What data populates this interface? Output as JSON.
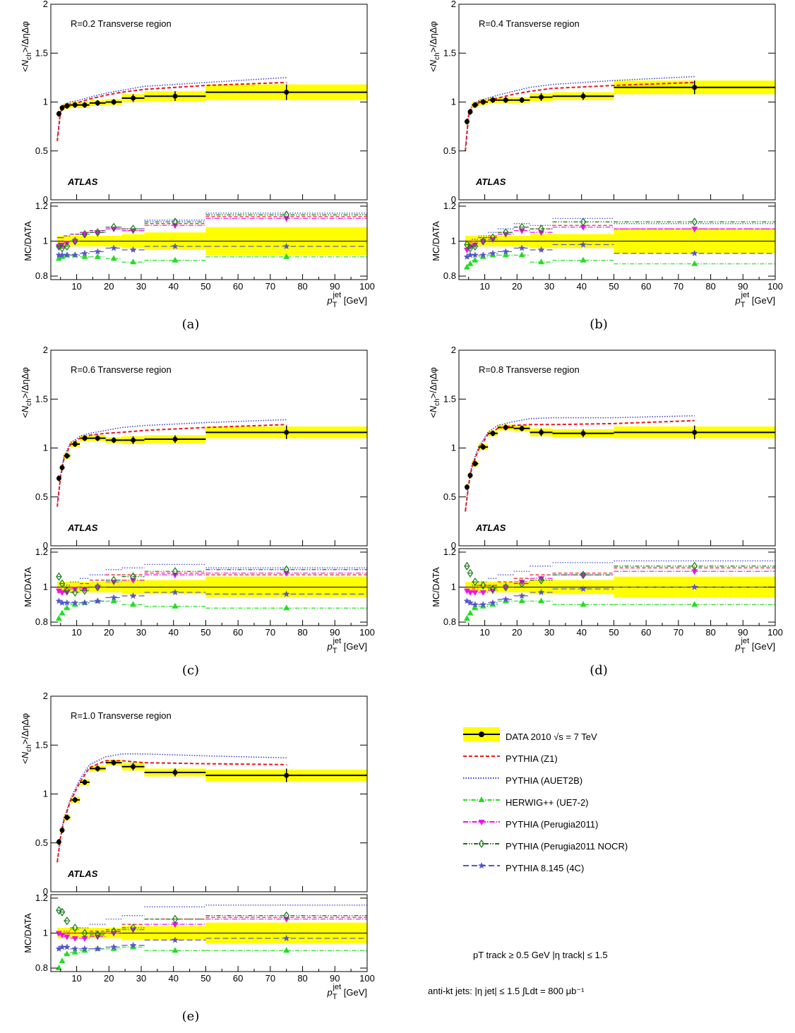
{
  "figure": {
    "panels": [
      {
        "caption": "(a)",
        "label": "R=0.2   Transverse region",
        "atlas": "ATLAS"
      },
      {
        "caption": "(b)",
        "label": "R=0.4   Transverse region",
        "atlas": "ATLAS"
      },
      {
        "caption": "(c)",
        "label": "R=0.6   Transverse region",
        "atlas": "ATLAS"
      },
      {
        "caption": "(d)",
        "label": "R=0.8   Transverse region",
        "atlas": "ATLAS"
      },
      {
        "caption": "(e)",
        "label": "R=1.0   Transverse region",
        "atlas": "ATLAS"
      }
    ],
    "ylabel_top": "<Nch>/ΔηΔφ",
    "ylabel_ratio": "MC/DATA",
    "xlabel": "pT jet [GeV]",
    "legend": [
      {
        "label": "DATA  2010  √s = 7 TeV",
        "color": "#000000",
        "style": "data"
      },
      {
        "label": "PYTHIA (Z1)",
        "color": "#e8191d",
        "style": "dashed"
      },
      {
        "label": "PYTHIA (AUET2B)",
        "color": "#3b3bd6",
        "style": "dotted"
      },
      {
        "label": "HERWIG++ (UE7-2)",
        "color": "#22dd22",
        "style": "dashdot",
        "marker": "triangle-up"
      },
      {
        "label": "PYTHIA (Perugia2011)",
        "color": "#ee11ee",
        "style": "dashdot",
        "marker": "triangle-down"
      },
      {
        "label": "PYTHIA (Perugia2011 NOCR)",
        "color": "#117711",
        "style": "dashdotdot",
        "marker": "open-diamond"
      },
      {
        "label": "PYTHIA 8.145 (4C)",
        "color": "#5555cc",
        "style": "longdash",
        "marker": "star"
      }
    ],
    "cuts_line1": "pT track ≥ 0.5 GeV   |η track| ≤ 1.5",
    "cuts_line2": "anti-kt jets: |η jet| ≤ 1.5   ∫Ldt = 800 μb⁻¹"
  },
  "chart_data": [
    {
      "type": "line",
      "title": "R=0.2 Transverse region",
      "xlim": [
        2,
        100
      ],
      "ylim": [
        0,
        2
      ],
      "ratio_ylim": [
        0.78,
        1.22
      ],
      "x_bins": [
        [
          4,
          5
        ],
        [
          5,
          6
        ],
        [
          6,
          8
        ],
        [
          8,
          11
        ],
        [
          11,
          14
        ],
        [
          14,
          19
        ],
        [
          19,
          24
        ],
        [
          24,
          31
        ],
        [
          31,
          50
        ],
        [
          50,
          100
        ]
      ],
      "x_markers": [
        4.5,
        5.5,
        7,
        9.5,
        12.5,
        16.5,
        21.5,
        27.5,
        40.5,
        75
      ],
      "data": [
        0.88,
        0.94,
        0.96,
        0.97,
        0.97,
        0.99,
        1.0,
        1.04,
        1.06,
        1.1
      ],
      "data_err": [
        0.03,
        0.03,
        0.03,
        0.03,
        0.03,
        0.03,
        0.03,
        0.04,
        0.05,
        0.08
      ],
      "mc_curves": {
        "z1_x": [
          4,
          5,
          6,
          8,
          11,
          14,
          19,
          24,
          31,
          50,
          75
        ],
        "z1": [
          0.6,
          0.9,
          0.95,
          0.98,
          1.0,
          1.03,
          1.07,
          1.1,
          1.13,
          1.17,
          1.2
        ],
        "auet2b": [
          0.62,
          0.92,
          0.97,
          1.0,
          1.02,
          1.05,
          1.09,
          1.12,
          1.16,
          1.2,
          1.25
        ]
      },
      "ratios": {
        "z1": [
          1.02,
          1.02,
          1.03,
          1.04,
          1.05,
          1.06,
          1.07,
          1.06,
          1.1,
          1.14
        ],
        "auet2b": [
          1.02,
          1.02,
          1.03,
          1.04,
          1.05,
          1.06,
          1.08,
          1.07,
          1.12,
          1.16
        ],
        "herwig": [
          0.9,
          0.91,
          0.92,
          0.92,
          0.91,
          0.91,
          0.9,
          0.88,
          0.89,
          0.91
        ],
        "perugia2011": [
          0.97,
          0.98,
          0.99,
          1.0,
          1.04,
          1.05,
          1.07,
          1.06,
          1.09,
          1.13
        ],
        "perugia2011_nocr": [
          0.97,
          0.96,
          0.97,
          1.0,
          1.04,
          1.05,
          1.08,
          1.07,
          1.11,
          1.15
        ],
        "pythia8_4c": [
          0.92,
          0.92,
          0.92,
          0.92,
          0.93,
          0.94,
          0.96,
          0.95,
          0.97,
          0.97
        ]
      },
      "band_err": [
        0.03,
        0.03,
        0.03,
        0.03,
        0.03,
        0.03,
        0.03,
        0.04,
        0.05,
        0.08
      ]
    },
    {
      "type": "line",
      "title": "R=0.4 Transverse region",
      "xlim": [
        2,
        100
      ],
      "ylim": [
        0,
        2
      ],
      "ratio_ylim": [
        0.78,
        1.22
      ],
      "x_bins": [
        [
          4,
          5
        ],
        [
          5,
          6
        ],
        [
          6,
          8
        ],
        [
          8,
          11
        ],
        [
          11,
          14
        ],
        [
          14,
          19
        ],
        [
          19,
          24
        ],
        [
          24,
          31
        ],
        [
          31,
          50
        ],
        [
          50,
          100
        ]
      ],
      "x_markers": [
        4.5,
        5.5,
        7,
        9.5,
        12.5,
        16.5,
        21.5,
        27.5,
        40.5,
        75
      ],
      "data": [
        0.8,
        0.9,
        0.97,
        1.0,
        1.02,
        1.02,
        1.02,
        1.05,
        1.06,
        1.15
      ],
      "data_err": [
        0.03,
        0.03,
        0.03,
        0.03,
        0.03,
        0.03,
        0.03,
        0.04,
        0.04,
        0.07
      ],
      "mc_curves": {
        "z1_x": [
          4,
          5,
          6,
          8,
          11,
          14,
          19,
          24,
          31,
          50,
          75
        ],
        "z1": [
          0.5,
          0.86,
          0.94,
          0.99,
          1.02,
          1.04,
          1.08,
          1.11,
          1.14,
          1.17,
          1.2
        ],
        "auet2b": [
          0.52,
          0.88,
          0.96,
          1.01,
          1.04,
          1.07,
          1.11,
          1.15,
          1.18,
          1.22,
          1.26
        ]
      },
      "ratios": {
        "z1": [
          1.0,
          0.99,
          1.0,
          1.02,
          1.03,
          1.05,
          1.08,
          1.07,
          1.09,
          1.07
        ],
        "auet2b": [
          1.0,
          1.0,
          1.01,
          1.03,
          1.05,
          1.07,
          1.1,
          1.09,
          1.13,
          1.1
        ],
        "herwig": [
          0.85,
          0.87,
          0.89,
          0.91,
          0.92,
          0.92,
          0.92,
          0.88,
          0.89,
          0.87
        ],
        "perugia2011": [
          0.95,
          0.97,
          0.98,
          1.0,
          1.01,
          1.04,
          1.06,
          1.05,
          1.08,
          1.07
        ],
        "perugia2011_nocr": [
          0.98,
          0.96,
          0.97,
          1.0,
          1.02,
          1.05,
          1.08,
          1.07,
          1.11,
          1.11
        ],
        "pythia8_4c": [
          0.91,
          0.92,
          0.92,
          0.92,
          0.93,
          0.94,
          0.96,
          0.95,
          0.98,
          0.93
        ]
      },
      "band_err": [
        0.03,
        0.03,
        0.03,
        0.03,
        0.03,
        0.03,
        0.03,
        0.04,
        0.04,
        0.07
      ]
    },
    {
      "type": "line",
      "title": "R=0.6 Transverse region",
      "xlim": [
        2,
        100
      ],
      "ylim": [
        0,
        2
      ],
      "ratio_ylim": [
        0.78,
        1.22
      ],
      "x_bins": [
        [
          4,
          5
        ],
        [
          5,
          6
        ],
        [
          6,
          8
        ],
        [
          8,
          11
        ],
        [
          11,
          14
        ],
        [
          14,
          19
        ],
        [
          19,
          24
        ],
        [
          24,
          31
        ],
        [
          31,
          50
        ],
        [
          50,
          100
        ]
      ],
      "x_markers": [
        4.5,
        5.5,
        7,
        9.5,
        12.5,
        16.5,
        21.5,
        27.5,
        40.5,
        75
      ],
      "data": [
        0.69,
        0.8,
        0.92,
        1.04,
        1.1,
        1.1,
        1.08,
        1.08,
        1.09,
        1.16
      ],
      "data_err": [
        0.03,
        0.03,
        0.03,
        0.03,
        0.03,
        0.03,
        0.03,
        0.04,
        0.04,
        0.07
      ],
      "mc_curves": {
        "z1_x": [
          4,
          5,
          6,
          8,
          11,
          14,
          19,
          24,
          31,
          50,
          75
        ],
        "z1": [
          0.4,
          0.7,
          0.88,
          1.03,
          1.1,
          1.13,
          1.15,
          1.16,
          1.18,
          1.21,
          1.24
        ],
        "auet2b": [
          0.42,
          0.72,
          0.9,
          1.05,
          1.12,
          1.15,
          1.18,
          1.21,
          1.23,
          1.26,
          1.29
        ]
      },
      "ratios": {
        "z1": [
          0.97,
          0.98,
          0.99,
          1.0,
          1.02,
          1.04,
          1.07,
          1.07,
          1.08,
          1.07
        ],
        "auet2b": [
          1.0,
          1.0,
          1.01,
          1.03,
          1.05,
          1.07,
          1.1,
          1.11,
          1.13,
          1.11
        ],
        "herwig": [
          0.82,
          0.85,
          0.88,
          0.9,
          0.91,
          0.92,
          0.92,
          0.9,
          0.89,
          0.88
        ],
        "perugia2011": [
          0.98,
          0.97,
          0.97,
          0.99,
          0.99,
          1.0,
          1.03,
          1.04,
          1.07,
          1.08
        ],
        "perugia2011_nocr": [
          1.06,
          1.02,
          0.98,
          0.97,
          0.98,
          1.0,
          1.04,
          1.06,
          1.09,
          1.1
        ],
        "pythia8_4c": [
          0.92,
          0.91,
          0.91,
          0.91,
          0.91,
          0.92,
          0.94,
          0.95,
          0.97,
          0.96
        ]
      },
      "band_err": [
        0.03,
        0.03,
        0.03,
        0.03,
        0.03,
        0.03,
        0.03,
        0.04,
        0.04,
        0.06
      ]
    },
    {
      "type": "line",
      "title": "R=0.8 Transverse region",
      "xlim": [
        2,
        100
      ],
      "ylim": [
        0,
        2
      ],
      "ratio_ylim": [
        0.78,
        1.22
      ],
      "x_bins": [
        [
          4,
          5
        ],
        [
          5,
          6
        ],
        [
          6,
          8
        ],
        [
          8,
          11
        ],
        [
          11,
          14
        ],
        [
          14,
          19
        ],
        [
          19,
          24
        ],
        [
          24,
          31
        ],
        [
          31,
          50
        ],
        [
          50,
          100
        ]
      ],
      "x_markers": [
        4.5,
        5.5,
        7,
        9.5,
        12.5,
        16.5,
        21.5,
        27.5,
        40.5,
        75
      ],
      "data": [
        0.6,
        0.72,
        0.84,
        1.01,
        1.15,
        1.21,
        1.2,
        1.16,
        1.15,
        1.16
      ],
      "data_err": [
        0.03,
        0.03,
        0.03,
        0.03,
        0.03,
        0.03,
        0.03,
        0.04,
        0.04,
        0.07
      ],
      "mc_curves": {
        "z1_x": [
          4,
          5,
          6,
          8,
          11,
          14,
          19,
          24,
          31,
          50,
          75
        ],
        "z1": [
          0.35,
          0.62,
          0.8,
          0.98,
          1.14,
          1.2,
          1.23,
          1.24,
          1.24,
          1.25,
          1.28
        ],
        "auet2b": [
          0.36,
          0.64,
          0.82,
          1.0,
          1.16,
          1.23,
          1.27,
          1.3,
          1.31,
          1.31,
          1.33
        ]
      },
      "ratios": {
        "z1": [
          0.98,
          0.98,
          0.99,
          1.0,
          1.01,
          1.03,
          1.05,
          1.07,
          1.08,
          1.11
        ],
        "auet2b": [
          1.0,
          1.0,
          1.01,
          1.03,
          1.05,
          1.07,
          1.09,
          1.12,
          1.14,
          1.15
        ],
        "herwig": [
          0.82,
          0.85,
          0.88,
          0.89,
          0.9,
          0.92,
          0.92,
          0.92,
          0.9,
          0.9
        ],
        "perugia2011": [
          0.98,
          0.97,
          0.97,
          0.97,
          0.98,
          1.0,
          1.03,
          1.05,
          1.07,
          1.09
        ],
        "perugia2011_nocr": [
          1.12,
          1.08,
          1.03,
          1.01,
          0.99,
          1.0,
          1.02,
          1.04,
          1.07,
          1.12
        ],
        "pythia8_4c": [
          0.92,
          0.91,
          0.9,
          0.9,
          0.91,
          0.93,
          0.95,
          0.97,
          0.99,
          1.0
        ]
      },
      "band_err": [
        0.03,
        0.03,
        0.03,
        0.03,
        0.03,
        0.03,
        0.03,
        0.04,
        0.04,
        0.06
      ]
    },
    {
      "type": "line",
      "title": "R=1.0 Transverse region",
      "xlim": [
        2,
        100
      ],
      "ylim": [
        0,
        2
      ],
      "ratio_ylim": [
        0.78,
        1.22
      ],
      "x_bins": [
        [
          4,
          5
        ],
        [
          5,
          6
        ],
        [
          6,
          8
        ],
        [
          8,
          11
        ],
        [
          11,
          14
        ],
        [
          14,
          19
        ],
        [
          19,
          24
        ],
        [
          24,
          31
        ],
        [
          31,
          50
        ],
        [
          50,
          100
        ]
      ],
      "x_markers": [
        4.5,
        5.5,
        7,
        9.5,
        12.5,
        16.5,
        21.5,
        27.5,
        40.5,
        75
      ],
      "data": [
        0.51,
        0.63,
        0.76,
        0.94,
        1.12,
        1.26,
        1.32,
        1.28,
        1.22,
        1.19
      ],
      "data_err": [
        0.03,
        0.03,
        0.03,
        0.03,
        0.03,
        0.03,
        0.03,
        0.04,
        0.04,
        0.07
      ],
      "mc_curves": {
        "z1_x": [
          4,
          5,
          6,
          8,
          11,
          14,
          19,
          24,
          31,
          50,
          75
        ],
        "z1": [
          0.3,
          0.55,
          0.72,
          0.92,
          1.12,
          1.27,
          1.34,
          1.34,
          1.32,
          1.31,
          1.3
        ],
        "auet2b": [
          0.31,
          0.57,
          0.74,
          0.94,
          1.15,
          1.3,
          1.38,
          1.41,
          1.41,
          1.39,
          1.37
        ]
      },
      "ratios": {
        "z1": [
          0.99,
          0.99,
          1.0,
          1.0,
          1.0,
          1.01,
          1.02,
          1.05,
          1.08,
          1.09
        ],
        "auet2b": [
          1.0,
          1.0,
          1.01,
          1.02,
          1.03,
          1.05,
          1.08,
          1.1,
          1.15,
          1.16
        ],
        "herwig": [
          0.8,
          0.84,
          0.88,
          0.89,
          0.9,
          0.91,
          0.91,
          0.92,
          0.9,
          0.9
        ],
        "perugia2011": [
          1.0,
          0.99,
          0.98,
          0.97,
          0.97,
          0.98,
          1.0,
          1.02,
          1.05,
          1.08
        ],
        "perugia2011_nocr": [
          1.13,
          1.12,
          1.07,
          1.03,
          1.0,
          0.99,
          1.01,
          1.03,
          1.08,
          1.1
        ],
        "pythia8_4c": [
          0.91,
          0.92,
          0.92,
          0.91,
          0.91,
          0.91,
          0.92,
          0.93,
          0.96,
          0.97
        ]
      },
      "band_err": [
        0.03,
        0.03,
        0.03,
        0.03,
        0.03,
        0.03,
        0.03,
        0.04,
        0.04,
        0.06
      ]
    }
  ]
}
